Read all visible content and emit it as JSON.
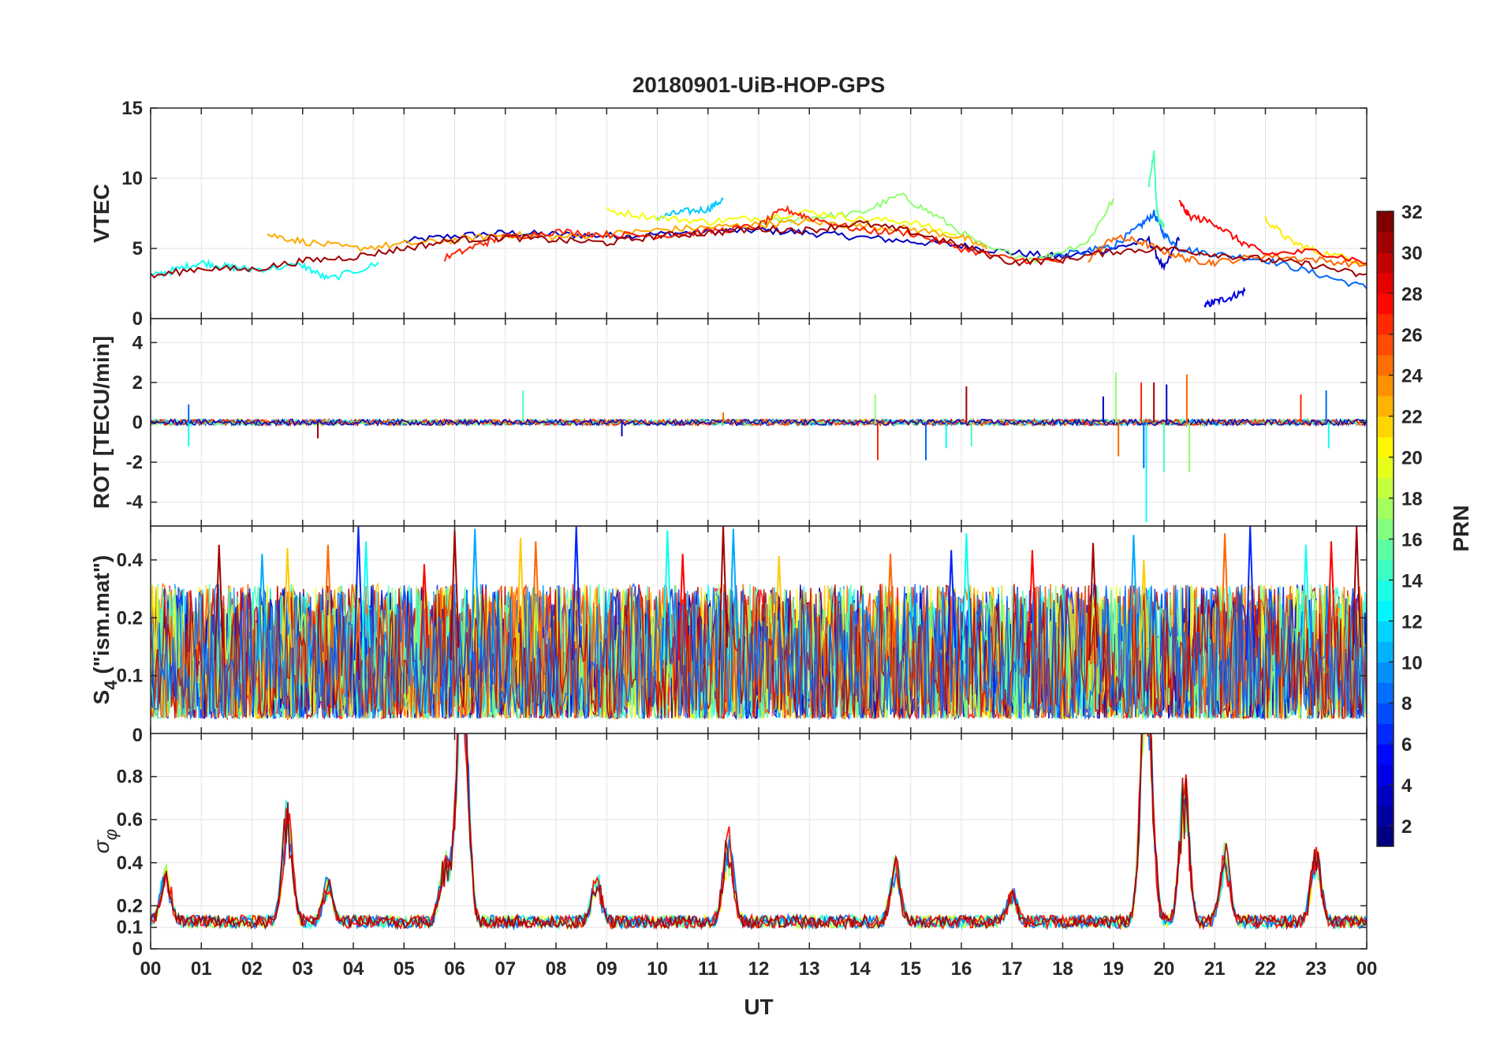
{
  "figure": {
    "title": "20180901-UiB-HOP-GPS",
    "xlabel": "UT"
  },
  "chart_data": [
    {
      "type": "line",
      "panel": "vtec",
      "title": "20180901-UiB-HOP-GPS",
      "xlabel": "",
      "ylabel": "VTEC",
      "xlim": [
        0,
        24
      ],
      "ylim": [
        0,
        15
      ],
      "yticks": [
        0,
        5,
        10,
        15
      ],
      "ytick_labels": [
        "0",
        "5",
        "10",
        "15"
      ],
      "grid": true,
      "series": [
        {
          "prn": 3,
          "x": [
            5.0,
            6.0,
            7.0,
            8.0,
            9.0,
            10.0,
            11.0,
            12.0,
            13.0,
            14.0,
            15.0,
            16.0,
            17.0,
            18.0,
            19.0,
            19.7,
            20.0,
            20.3
          ],
          "y": [
            5.5,
            5.9,
            6.1,
            6.0,
            5.9,
            6.0,
            6.2,
            6.3,
            6.1,
            5.8,
            5.5,
            5.2,
            4.7,
            4.4,
            5.0,
            5.6,
            3.5,
            5.8
          ]
        },
        {
          "prn": 4,
          "x": [
            20.8,
            21.0,
            21.3,
            21.6
          ],
          "y": [
            0.9,
            1.2,
            1.5,
            2.0
          ]
        },
        {
          "prn": 8,
          "x": [
            17.5,
            18.5,
            19.0,
            19.5,
            19.8,
            20.0,
            20.3,
            21.0,
            22.0,
            23.0,
            24.0
          ],
          "y": [
            4.3,
            4.8,
            5.2,
            6.5,
            7.5,
            6.0,
            5.0,
            4.6,
            4.2,
            3.2,
            2.2
          ]
        },
        {
          "prn": 11,
          "x": [
            10.0,
            10.5,
            11.0,
            11.3
          ],
          "y": [
            7.2,
            7.6,
            7.8,
            8.5
          ]
        },
        {
          "prn": 13,
          "x": [
            0.0,
            0.5,
            1.0,
            1.5,
            2.0,
            3.0,
            3.5,
            4.5
          ],
          "y": [
            3.0,
            3.5,
            4.0,
            3.7,
            3.5,
            3.8,
            2.8,
            3.9
          ]
        },
        {
          "prn": 15,
          "x": [
            19.7,
            19.8,
            19.85,
            19.9,
            20.0
          ],
          "y": [
            9.5,
            11.8,
            8.0,
            7.0,
            6.5
          ]
        },
        {
          "prn": 17,
          "x": [
            12.0,
            13.0,
            14.0,
            14.8,
            15.5,
            16.5,
            17.5,
            18.5,
            19.0
          ],
          "y": [
            6.8,
            7.2,
            7.5,
            8.8,
            7.3,
            5.0,
            4.2,
            5.5,
            8.5
          ]
        },
        {
          "prn": 20,
          "x": [
            9.0,
            10.0,
            11.0,
            12.0,
            13.0,
            14.0,
            15.0,
            16.0
          ],
          "y": [
            7.7,
            7.2,
            6.9,
            7.2,
            7.6,
            7.1,
            6.9,
            5.8
          ]
        },
        {
          "prn": 21,
          "x": [
            22.0,
            22.5,
            23.0,
            24.0
          ],
          "y": [
            7.1,
            5.5,
            4.8,
            4.0
          ]
        },
        {
          "prn": 23,
          "x": [
            2.3,
            3.0,
            4.0,
            5.0,
            6.0,
            7.0,
            8.0,
            9.0,
            10.0,
            11.0,
            12.0,
            13.0,
            14.0,
            15.0,
            16.0,
            16.5
          ],
          "y": [
            6.0,
            5.5,
            5.0,
            5.3,
            5.6,
            6.0,
            5.8,
            6.0,
            6.3,
            6.5,
            6.7,
            6.9,
            6.6,
            6.4,
            5.8,
            5.0
          ]
        },
        {
          "prn": 25,
          "x": [
            18.5,
            19.0,
            19.5,
            20.0,
            20.5,
            21.0,
            22.0,
            23.0,
            24.0
          ],
          "y": [
            4.2,
            5.8,
            5.5,
            4.8,
            4.2,
            4.0,
            4.5,
            4.2,
            3.8
          ]
        },
        {
          "prn": 27,
          "x": [
            5.8,
            6.5,
            7.0,
            8.0,
            9.0,
            10.0,
            11.0,
            12.0,
            12.5,
            13.0,
            14.0,
            15.0,
            16.0,
            17.0,
            18.0
          ],
          "y": [
            4.3,
            5.3,
            5.8,
            6.2,
            6.0,
            5.9,
            6.2,
            6.6,
            7.8,
            7.2,
            6.3,
            6.1,
            5.0,
            4.2,
            4.1
          ]
        },
        {
          "prn": 28,
          "x": [
            20.3,
            20.5,
            21.0,
            21.5,
            22.0,
            23.0,
            24.0
          ],
          "y": [
            8.3,
            7.3,
            6.8,
            5.5,
            4.6,
            4.8,
            4.0
          ]
        },
        {
          "prn": 31,
          "x": [
            0.0,
            1.0,
            2.0,
            3.0,
            4.0,
            5.0,
            6.0,
            7.0,
            8.0,
            9.0,
            10.0,
            11.0,
            12.0,
            13.0,
            14.0,
            15.0,
            16.0,
            17.0,
            18.0,
            19.0,
            20.0,
            21.0,
            22.0,
            23.0,
            24.0
          ],
          "y": [
            3.0,
            3.6,
            3.5,
            4.1,
            4.4,
            5.0,
            5.6,
            5.8,
            5.6,
            5.4,
            5.9,
            6.1,
            6.4,
            6.3,
            6.8,
            6.2,
            5.2,
            4.0,
            4.2,
            4.8,
            5.0,
            4.6,
            4.2,
            3.8,
            3.0
          ]
        }
      ]
    },
    {
      "type": "line",
      "panel": "rot",
      "ylabel": "ROT [TECU/min]",
      "xlim": [
        0,
        24
      ],
      "ylim": [
        -5.2,
        5.2
      ],
      "yticks": [
        -4,
        -2,
        0,
        2,
        4
      ],
      "ytick_labels": [
        "-4",
        "-2",
        "0",
        "2",
        "4"
      ],
      "grid": true,
      "baseline": 0,
      "noise_level": 0.15,
      "spikes": [
        {
          "x": 0.75,
          "y": 0.9
        },
        {
          "x": 0.75,
          "y": -1.2
        },
        {
          "x": 3.3,
          "y": -0.8
        },
        {
          "x": 7.35,
          "y": 1.6
        },
        {
          "x": 9.3,
          "y": -0.7
        },
        {
          "x": 11.3,
          "y": 0.5
        },
        {
          "x": 14.3,
          "y": 1.4
        },
        {
          "x": 14.35,
          "y": -1.9
        },
        {
          "x": 15.3,
          "y": -1.9
        },
        {
          "x": 15.7,
          "y": -1.3
        },
        {
          "x": 16.1,
          "y": 1.8
        },
        {
          "x": 16.2,
          "y": -1.2
        },
        {
          "x": 18.8,
          "y": 1.3
        },
        {
          "x": 19.1,
          "y": -1.7
        },
        {
          "x": 19.05,
          "y": 2.5
        },
        {
          "x": 19.55,
          "y": 2.0
        },
        {
          "x": 19.6,
          "y": -2.3
        },
        {
          "x": 19.65,
          "y": -5.0
        },
        {
          "x": 19.8,
          "y": 2.0
        },
        {
          "x": 20.0,
          "y": -2.5
        },
        {
          "x": 20.05,
          "y": 1.9
        },
        {
          "x": 20.45,
          "y": 2.4
        },
        {
          "x": 20.5,
          "y": -2.5
        },
        {
          "x": 22.7,
          "y": 1.4
        },
        {
          "x": 23.2,
          "y": 1.6
        },
        {
          "x": 23.25,
          "y": -1.3
        }
      ]
    },
    {
      "type": "line",
      "panel": "s4",
      "ylabel": "S4 (\"ism.mat\")",
      "ylabel_main": "S",
      "ylabel_sub": "4",
      "ylabel_rest": " (\"ism.mat\")",
      "xlim": [
        0,
        24
      ],
      "ylim": [
        0.05,
        0.6
      ],
      "yscale": "log",
      "yticks": [
        0.1,
        0.2,
        0.4
      ],
      "ytick_labels": [
        "0.1",
        "0.2",
        "0.4"
      ],
      "grid": true,
      "background_level": [
        0.06,
        0.3
      ],
      "peaks": [
        {
          "x": 1.35,
          "y": 0.48
        },
        {
          "x": 2.2,
          "y": 0.43
        },
        {
          "x": 2.7,
          "y": 0.46
        },
        {
          "x": 3.5,
          "y": 0.48
        },
        {
          "x": 4.1,
          "y": 0.6
        },
        {
          "x": 4.25,
          "y": 0.5
        },
        {
          "x": 5.4,
          "y": 0.38
        },
        {
          "x": 6.0,
          "y": 0.57
        },
        {
          "x": 6.4,
          "y": 0.58
        },
        {
          "x": 7.3,
          "y": 0.52
        },
        {
          "x": 7.6,
          "y": 0.5
        },
        {
          "x": 8.4,
          "y": 0.6
        },
        {
          "x": 10.2,
          "y": 0.57
        },
        {
          "x": 10.5,
          "y": 0.43
        },
        {
          "x": 11.3,
          "y": 0.6
        },
        {
          "x": 11.5,
          "y": 0.58
        },
        {
          "x": 12.4,
          "y": 0.42
        },
        {
          "x": 14.6,
          "y": 0.43
        },
        {
          "x": 15.8,
          "y": 0.45
        },
        {
          "x": 16.1,
          "y": 0.55
        },
        {
          "x": 17.4,
          "y": 0.45
        },
        {
          "x": 18.6,
          "y": 0.49
        },
        {
          "x": 19.4,
          "y": 0.54
        },
        {
          "x": 19.6,
          "y": 0.4
        },
        {
          "x": 21.2,
          "y": 0.55
        },
        {
          "x": 21.7,
          "y": 0.6
        },
        {
          "x": 22.8,
          "y": 0.48
        },
        {
          "x": 23.3,
          "y": 0.5
        },
        {
          "x": 23.8,
          "y": 0.6
        }
      ]
    },
    {
      "type": "line",
      "panel": "sigma_phi",
      "ylabel": "σφ",
      "ylabel_main": "σ",
      "ylabel_sub": "φ",
      "xlabel": "UT",
      "xlim": [
        0,
        24
      ],
      "ylim": [
        0,
        1
      ],
      "yticks": [
        0,
        0.1,
        0.2,
        0.4,
        0.6,
        0.8
      ],
      "ytick_labels": [
        "0",
        "0.1",
        "0.2",
        "0.4",
        "0.6",
        "0.8"
      ],
      "top_label": "0",
      "grid": true,
      "background_level": 0.12,
      "peaks": [
        {
          "x": 0.3,
          "y": 0.38
        },
        {
          "x": 2.7,
          "y": 0.72
        },
        {
          "x": 3.5,
          "y": 0.33
        },
        {
          "x": 5.8,
          "y": 0.43
        },
        {
          "x": 6.1,
          "y": 0.98
        },
        {
          "x": 6.2,
          "y": 0.9
        },
        {
          "x": 8.8,
          "y": 0.34
        },
        {
          "x": 11.4,
          "y": 0.56
        },
        {
          "x": 14.7,
          "y": 0.42
        },
        {
          "x": 17.0,
          "y": 0.27
        },
        {
          "x": 19.6,
          "y": 0.85
        },
        {
          "x": 19.7,
          "y": 1.0
        },
        {
          "x": 20.4,
          "y": 0.83
        },
        {
          "x": 21.2,
          "y": 0.48
        },
        {
          "x": 23.0,
          "y": 0.51
        }
      ],
      "xticks": [
        0,
        1,
        2,
        3,
        4,
        5,
        6,
        7,
        8,
        9,
        10,
        11,
        12,
        13,
        14,
        15,
        16,
        17,
        18,
        19,
        20,
        21,
        22,
        23,
        24
      ],
      "xtick_labels": [
        "00",
        "01",
        "02",
        "03",
        "04",
        "05",
        "06",
        "07",
        "08",
        "09",
        "10",
        "11",
        "12",
        "13",
        "14",
        "15",
        "16",
        "17",
        "18",
        "19",
        "20",
        "21",
        "22",
        "23",
        "00"
      ]
    },
    {
      "type": "heatmap",
      "panel": "colorbar",
      "label": "PRN",
      "colormap": "jet",
      "clim": [
        1,
        32
      ],
      "ticks": [
        2,
        4,
        6,
        8,
        10,
        12,
        14,
        16,
        18,
        20,
        22,
        24,
        26,
        28,
        30,
        32
      ],
      "tick_labels": [
        "2",
        "4",
        "6",
        "8",
        "10",
        "12",
        "14",
        "16",
        "18",
        "20",
        "22",
        "24",
        "26",
        "28",
        "30",
        "32"
      ]
    }
  ]
}
